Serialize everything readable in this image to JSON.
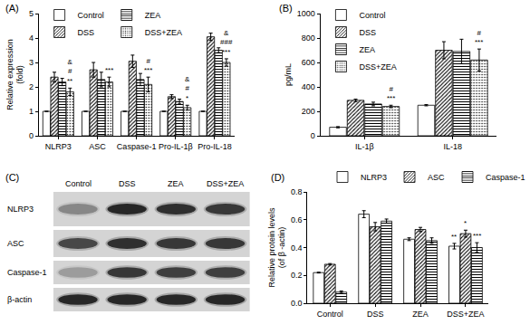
{
  "chart_data": [
    {
      "type": "bar",
      "title": "(A)",
      "y_label": "Relative expression\n(fold)",
      "categories": [
        "NLRP3",
        "ASC",
        "Caspase-1",
        "Pro-IL-1β",
        "Pro-IL-18"
      ],
      "ylim": [
        0,
        5
      ],
      "yticks": [
        0,
        1,
        2,
        3,
        4,
        5
      ],
      "grid": false,
      "legend": "upper left",
      "series": [
        {
          "name": "Control",
          "color": "#ffffff",
          "marker": "none",
          "values": [
            1,
            1,
            1,
            1,
            1
          ],
          "errors": [
            0,
            0,
            0,
            0,
            0
          ]
        },
        {
          "name": "DSS",
          "color": "#ffffff",
          "marker": "diagonal",
          "values": [
            2.4,
            2.7,
            3.05,
            1.6,
            4.05
          ],
          "errors": [
            0.2,
            0.3,
            0.25,
            0.08,
            0.15
          ]
        },
        {
          "name": "ZEA",
          "color": "#ffffff",
          "marker": "horizontal",
          "values": [
            2.2,
            2.3,
            2.3,
            1.4,
            3.5
          ],
          "errors": [
            0.15,
            0.3,
            0.25,
            0.1,
            0.1
          ]
        },
        {
          "name": "DSS+ZEA",
          "color": "#ffffff",
          "marker": "dotted",
          "values": [
            1.8,
            2.2,
            2.1,
            1.15,
            3.0
          ],
          "errors": [
            0.15,
            0.2,
            0.3,
            0.1,
            0.15
          ],
          "significance": [
            [
              "&",
              "#",
              "**"
            ],
            [
              "***"
            ],
            [
              "#",
              "***"
            ],
            [
              "&",
              "#",
              "*"
            ],
            [
              "&",
              "###",
              "***"
            ]
          ]
        }
      ]
    },
    {
      "type": "bar",
      "title": "(B)",
      "y_label": "pg/mL",
      "categories": [
        "IL-1β",
        "IL-18"
      ],
      "ylim": [
        0,
        1000
      ],
      "yticks": [
        0,
        200,
        400,
        600,
        800,
        1000
      ],
      "grid": false,
      "legend": "upper left",
      "series": [
        {
          "name": "Control",
          "color": "#ffffff",
          "marker": "none",
          "values": [
            70,
            250
          ],
          "errors": [
            5,
            5
          ]
        },
        {
          "name": "DSS",
          "color": "#ffffff",
          "marker": "diagonal",
          "values": [
            290,
            700
          ],
          "errors": [
            10,
            70
          ]
        },
        {
          "name": "ZEA",
          "color": "#ffffff",
          "marker": "horizontal",
          "values": [
            260,
            690
          ],
          "errors": [
            15,
            100
          ]
        },
        {
          "name": "DSS+ZEA",
          "color": "#ffffff",
          "marker": "dotted",
          "values": [
            240,
            620
          ],
          "errors": [
            10,
            90
          ],
          "significance": [
            [
              "#",
              "***"
            ],
            [
              "#",
              "***"
            ]
          ]
        }
      ]
    },
    {
      "type": "bar",
      "title": "(D)",
      "y_label": "Relative protein levels\n(of β -actin)",
      "categories": [
        "Control",
        "DSS",
        "ZEA",
        "DSS+ZEA"
      ],
      "ylim": [
        0,
        0.8
      ],
      "yticks": [
        {
          "value": 0,
          "label": "0.0"
        },
        0.2,
        0.4,
        0.6,
        0.8
      ],
      "grid": false,
      "legend": "top",
      "series": [
        {
          "name": "NLRP3",
          "color": "#ffffff",
          "marker": "none",
          "values": [
            0.22,
            0.64,
            0.46,
            0.41
          ],
          "errors": [
            0.003,
            0.025,
            0.01,
            0.02
          ],
          "significance": [
            null,
            null,
            null,
            [
              "**"
            ]
          ]
        },
        {
          "name": "ASC",
          "color": "#ffffff",
          "marker": "diagonal",
          "values": [
            0.28,
            0.55,
            0.53,
            0.5
          ],
          "errors": [
            0.005,
            0.03,
            0.015,
            0.025
          ],
          "significance": [
            null,
            null,
            null,
            [
              "*"
            ]
          ]
        },
        {
          "name": "Caspase-1",
          "color": "#ffffff",
          "marker": "horizontal",
          "values": [
            0.08,
            0.59,
            0.45,
            0.4
          ],
          "errors": [
            0.008,
            0.015,
            0.02,
            0.035
          ],
          "significance": [
            null,
            null,
            null,
            [
              "***"
            ]
          ]
        }
      ]
    }
  ],
  "blot": {
    "title": "(C)",
    "lanes": [
      "Control",
      "DSS",
      "ZEA",
      "DSS+ZEA"
    ],
    "rows": [
      "NLRP3",
      "ASC",
      "Caspase-1",
      "β-actin"
    ]
  }
}
